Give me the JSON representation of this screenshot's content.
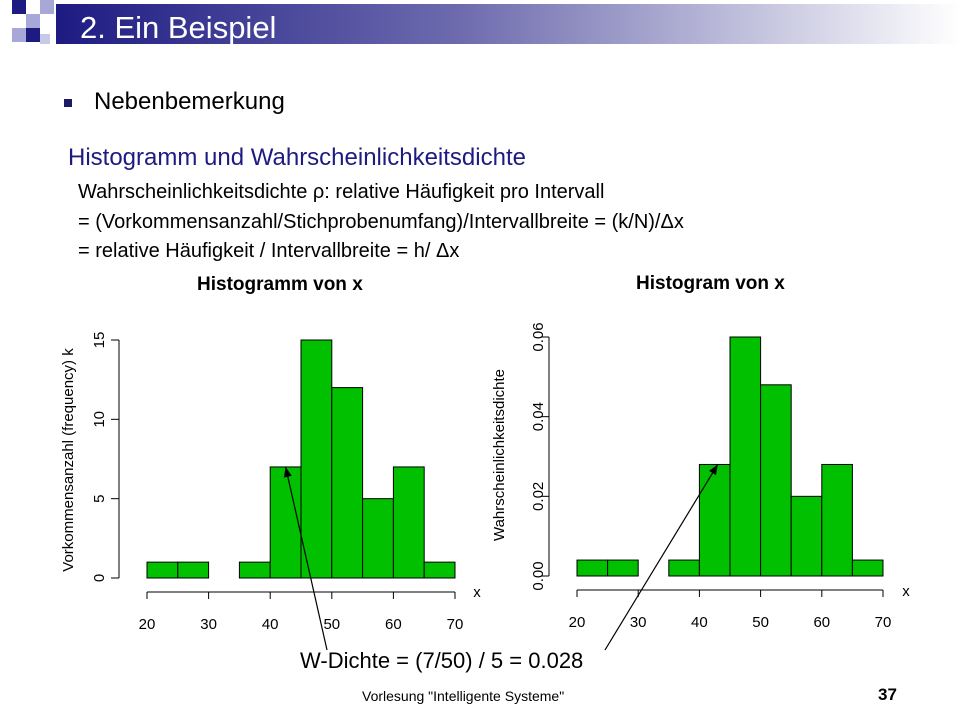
{
  "slide": {
    "title": "2. Ein Beispiel",
    "bullet": "Nebenbemerkung",
    "subheading": "Histogramm und Wahrscheinlichkeitsdichte",
    "lines": [
      "Wahrscheinlichkeitsdichte ρ: relative Häufigkeit pro Intervall",
      "= (Vorkommensanzahl/Stichprobenumfang)/Intervallbreite   = (k/N)/Δx",
      "= relative Häufigkeit / Intervallbreite = h/ Δx"
    ],
    "annotation": "W-Dichte = (7/50) / 5 = 0.028",
    "footer": "Vorlesung \"Intelligente Systeme\"",
    "page_number": "37",
    "colors": {
      "accent_dark": "#1d1b82",
      "bar_fill": "#00c000",
      "title_text": "#ffffff"
    }
  },
  "chart_data": [
    {
      "type": "bar",
      "title": "Histogramm von x",
      "xlabel": "x",
      "ylabel": "Vorkommensanzahl (frequency) k",
      "bin_edges": [
        20,
        25,
        30,
        35,
        40,
        45,
        50,
        55,
        60,
        65,
        70
      ],
      "values": [
        1,
        1,
        0,
        1,
        7,
        15,
        12,
        5,
        7,
        1
      ],
      "x_ticks": [
        "20",
        "30",
        "40",
        "50",
        "60",
        "70"
      ],
      "y_ticks": [
        "0",
        "5",
        "10",
        "15"
      ],
      "xlim": [
        20,
        70
      ],
      "ylim": [
        0,
        15
      ],
      "grid": false
    },
    {
      "type": "bar",
      "title": "Histogram von x",
      "xlabel": "x",
      "ylabel": "Wahrscheinlichkeitsdichte",
      "bin_edges": [
        20,
        25,
        30,
        35,
        40,
        45,
        50,
        55,
        60,
        65,
        70
      ],
      "values": [
        0.004,
        0.004,
        0,
        0.004,
        0.028,
        0.06,
        0.048,
        0.02,
        0.028,
        0.004
      ],
      "x_ticks": [
        "20",
        "30",
        "40",
        "50",
        "60",
        "70"
      ],
      "y_ticks": [
        "0.00",
        "0.02",
        "0.04",
        "0.06"
      ],
      "xlim": [
        20,
        70
      ],
      "ylim": [
        0,
        0.06
      ],
      "grid": false
    }
  ]
}
